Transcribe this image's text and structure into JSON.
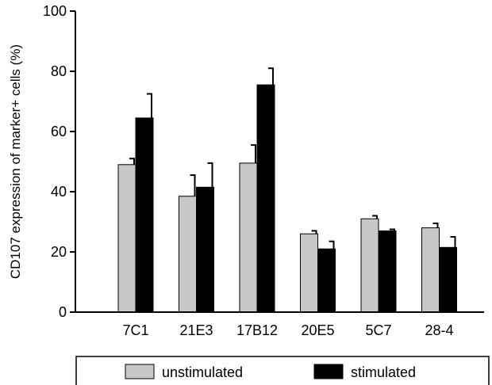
{
  "chart_data": {
    "type": "bar",
    "title": "",
    "xlabel": "",
    "ylabel": "CD107 expression of marker+ cells (%)",
    "ylim": [
      0,
      100
    ],
    "yticks": [
      "0",
      "20",
      "40",
      "60",
      "80",
      "100"
    ],
    "grid": false,
    "legend_position": "bottom",
    "categories": [
      "7C1",
      "21E3",
      "17B12",
      "20E5",
      "5C7",
      "28-4"
    ],
    "series": [
      {
        "name": "unstimulated",
        "color": "#c8c8c8",
        "values": [
          49,
          38.5,
          49.5,
          26,
          31,
          28
        ],
        "errors": [
          2,
          7,
          6,
          1,
          1,
          1.5
        ]
      },
      {
        "name": "stimulated",
        "color": "#000000",
        "values": [
          64.5,
          41.5,
          75.5,
          21,
          27,
          21.5
        ],
        "errors": [
          8,
          8,
          5.5,
          2.5,
          0.5,
          3.5
        ]
      }
    ]
  }
}
